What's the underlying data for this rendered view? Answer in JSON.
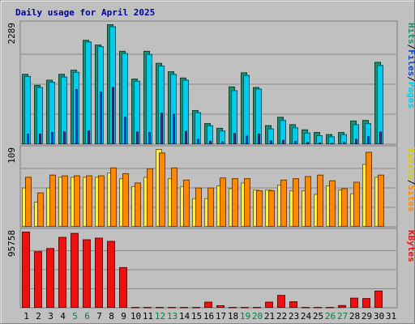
{
  "chart_data": {
    "type": "bar",
    "title": "Daily usage for April 2025",
    "categories": [
      "1",
      "2",
      "3",
      "4",
      "5",
      "6",
      "7",
      "8",
      "9",
      "10",
      "11",
      "12",
      "13",
      "14",
      "15",
      "16",
      "17",
      "18",
      "19",
      "20",
      "21",
      "22",
      "23",
      "24",
      "25",
      "26",
      "27",
      "28",
      "29",
      "30",
      "31"
    ],
    "weekend_days": [
      "5",
      "6",
      "12",
      "13",
      "19",
      "20",
      "26",
      "27"
    ],
    "panels": [
      {
        "id": "hits-files-pages",
        "max_label": "2289",
        "ylim": [
          0,
          2289
        ],
        "legend": [
          "Pages",
          "Files",
          "Hits"
        ],
        "series": [
          {
            "name": "Hits",
            "color": "#1f8f6f",
            "values": [
              1340,
              1130,
              1230,
              1340,
              1420,
              1990,
              1900,
              2289,
              1780,
              1250,
              1780,
              1550,
              1390,
              1270,
              650,
              400,
              310,
              1100,
              1370,
              1090,
              360,
              520,
              380,
              280,
              230,
              190,
              230,
              450,
              460,
              1570,
              null
            ]
          },
          {
            "name": "Files",
            "color": "#00ccee",
            "values": [
              1300,
              1090,
              1190,
              1290,
              1380,
              1960,
              1870,
              2250,
              1740,
              1210,
              1720,
              1500,
              1340,
              1230,
              610,
              360,
              260,
              1030,
              1320,
              1060,
              300,
              460,
              320,
              220,
              170,
              150,
              190,
              380,
              400,
              1510,
              null
            ]
          },
          {
            "name": "Pages",
            "color": "#1144cc",
            "values": [
              200,
              200,
              230,
              240,
              1050,
              260,
              1000,
              1090,
              520,
              240,
              230,
              600,
              580,
              250,
              100,
              60,
              50,
              210,
              160,
              200,
              70,
              80,
              60,
              40,
              30,
              20,
              40,
              100,
              150,
              240,
              null
            ]
          }
        ]
      },
      {
        "id": "visits-sites",
        "max_label": "109",
        "ylim": [
          0,
          109
        ],
        "legend": [
          "Sites",
          "Visits"
        ],
        "series": [
          {
            "name": "Visits",
            "color": "#ffee44",
            "values": [
              55,
              35,
              55,
              70,
              70,
              70,
              70,
              76,
              68,
              57,
              70,
              109,
              68,
              57,
              40,
              40,
              58,
              54,
              62,
              52,
              52,
              59,
              51,
              51,
              46,
              58,
              52,
              47,
              88,
              70,
              null
            ]
          },
          {
            "name": "Sites",
            "color": "#ff8800",
            "values": [
              70,
              48,
              73,
              72,
              72,
              72,
              72,
              83,
              75,
              62,
              82,
              104,
              83,
              66,
              55,
              55,
              69,
              68,
              68,
              51,
              51,
              66,
              68,
              71,
              73,
              65,
              54,
              63,
              105,
              73,
              null
            ]
          }
        ]
      },
      {
        "id": "kbytes",
        "max_label": "95758",
        "ylim": [
          0,
          95758
        ],
        "legend": [
          "KBytes"
        ],
        "series": [
          {
            "name": "KBytes",
            "color": "#ee1111",
            "values": [
              95758,
              71000,
              75000,
              89000,
              94000,
              86000,
              88000,
              84000,
              51000,
              1000,
              1000,
              1000,
              1000,
              1000,
              1000,
              7500,
              3000,
              1000,
              1000,
              1000,
              7500,
              16000,
              8000,
              1000,
              1000,
              1000,
              3200,
              12500,
              12000,
              21500,
              null
            ]
          }
        ]
      }
    ]
  }
}
